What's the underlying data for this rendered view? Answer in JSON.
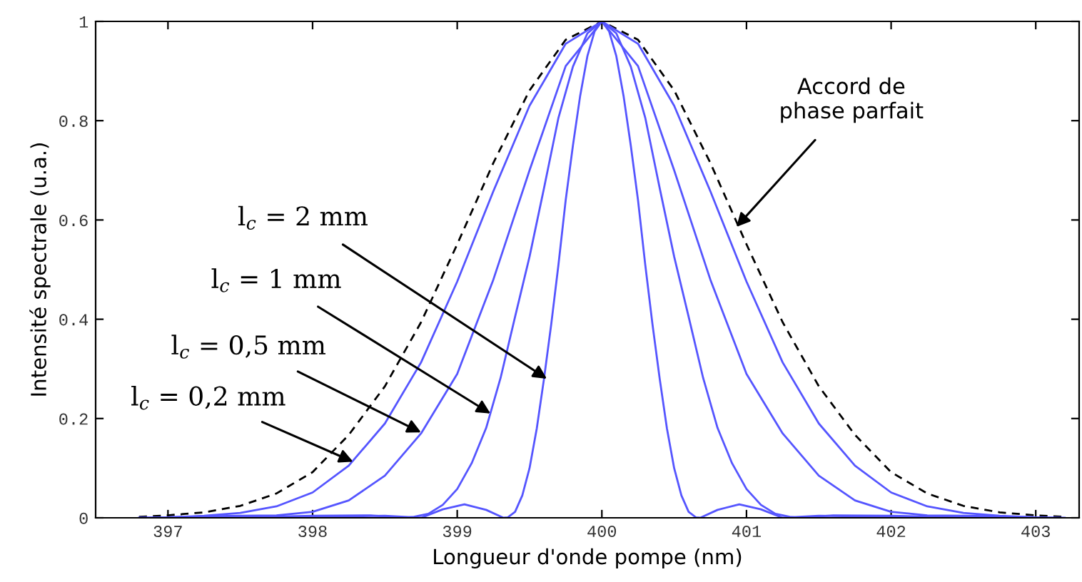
{
  "chart_data": {
    "type": "line",
    "xlabel": "Longueur d'onde pompe (nm)",
    "ylabel": "Intensité spectrale (u.a.)",
    "xlim": [
      396.5,
      403.3
    ],
    "ylim": [
      0,
      1
    ],
    "xticks": [
      397,
      398,
      399,
      400,
      401,
      402,
      403
    ],
    "yticks": [
      0,
      {
        "value": 0.2,
        "label": "0.2"
      },
      {
        "value": 0.4,
        "label": "0.4"
      },
      {
        "value": 0.6,
        "label": "0.6"
      },
      {
        "value": 0.8,
        "label": "0.8"
      },
      1
    ],
    "grid": false,
    "legend": false,
    "marker": "none",
    "series": [
      {
        "color": "#000000",
        "line_style": "dashed",
        "x": [
          396.8,
          397,
          397.25,
          397.5,
          397.75,
          398,
          398.25,
          398.5,
          398.75,
          399,
          399.25,
          399.5,
          399.75,
          400,
          400.25,
          400.5,
          400.75,
          401,
          401.25,
          401.5,
          401.75,
          402,
          402.25,
          402.5,
          402.75,
          403,
          403.2
        ],
        "values": [
          0.002,
          0.005,
          0.011,
          0.024,
          0.049,
          0.092,
          0.167,
          0.265,
          0.394,
          0.551,
          0.715,
          0.861,
          0.963,
          1,
          0.963,
          0.861,
          0.715,
          0.551,
          0.394,
          0.265,
          0.167,
          0.092,
          0.049,
          0.024,
          0.011,
          0.005,
          0.002
        ]
      },
      {
        "color": "#5555ff",
        "line_style": "solid",
        "x": [
          396.8,
          397,
          397.25,
          397.5,
          397.75,
          398,
          398.25,
          398.5,
          398.75,
          399,
          399.25,
          399.5,
          399.75,
          400,
          400.25,
          400.5,
          400.75,
          401,
          401.25,
          401.5,
          401.75,
          402,
          402.25,
          402.5,
          402.75,
          403,
          403.2
        ],
        "values": [
          0,
          0.001,
          0.004,
          0.01,
          0.023,
          0.051,
          0.105,
          0.19,
          0.313,
          0.476,
          0.658,
          0.83,
          0.955,
          1,
          0.955,
          0.83,
          0.658,
          0.476,
          0.313,
          0.19,
          0.105,
          0.051,
          0.023,
          0.01,
          0.004,
          0.001,
          0
        ]
      },
      {
        "color": "#5555ff",
        "line_style": "solid",
        "x": [
          396.8,
          397,
          397.25,
          397.5,
          397.75,
          398,
          398.25,
          398.5,
          398.75,
          399,
          399.25,
          399.5,
          399.75,
          400,
          400.25,
          400.5,
          400.75,
          401,
          401.25,
          401.5,
          401.75,
          402,
          402.25,
          402.5,
          402.75,
          403,
          403.2
        ],
        "values": [
          0,
          0.001,
          0.003,
          0.004,
          0.005,
          0.012,
          0.035,
          0.085,
          0.17,
          0.29,
          0.48,
          0.7,
          0.91,
          1,
          0.91,
          0.7,
          0.48,
          0.29,
          0.17,
          0.085,
          0.035,
          0.012,
          0.005,
          0.004,
          0.003,
          0.001,
          0
        ]
      },
      {
        "color": "#5555ff",
        "line_style": "solid",
        "x": [
          397,
          397.5,
          398,
          398.4,
          398.64,
          398.7,
          398.8,
          398.9,
          399,
          399.1,
          399.2,
          399.3,
          399.4,
          399.5,
          399.6,
          399.7,
          399.8,
          399.9,
          400,
          400.1,
          400.2,
          400.3,
          400.4,
          400.5,
          400.6,
          400.7,
          400.8,
          400.9,
          401,
          401.1,
          401.2,
          401.3,
          401.36,
          401.6,
          402,
          402.5,
          403
        ],
        "values": [
          0,
          0.001,
          0.004,
          0.005,
          0,
          0.002,
          0.008,
          0.026,
          0.058,
          0.11,
          0.181,
          0.282,
          0.405,
          0.526,
          0.664,
          0.806,
          0.909,
          0.976,
          1,
          0.976,
          0.909,
          0.806,
          0.664,
          0.526,
          0.405,
          0.282,
          0.181,
          0.11,
          0.058,
          0.026,
          0.008,
          0.002,
          0,
          0.005,
          0.004,
          0.001,
          0
        ]
      },
      {
        "color": "#5555ff",
        "line_style": "solid",
        "x": [
          397,
          398,
          398.5,
          398.75,
          398.9,
          399.05,
          399.2,
          399.32,
          399.35,
          399.4,
          399.45,
          399.5,
          399.55,
          399.6,
          399.65,
          399.7,
          399.75,
          399.8,
          399.85,
          399.9,
          399.95,
          400,
          400.05,
          400.1,
          400.15,
          400.2,
          400.25,
          400.3,
          400.35,
          400.4,
          400.45,
          400.5,
          400.55,
          400.6,
          400.65,
          400.68,
          400.8,
          400.95,
          401.1,
          401.25,
          401.5,
          402,
          403
        ],
        "values": [
          0,
          0.002,
          0.004,
          0,
          0.017,
          0.027,
          0.016,
          0,
          0.001,
          0.012,
          0.045,
          0.1,
          0.18,
          0.28,
          0.39,
          0.51,
          0.64,
          0.75,
          0.85,
          0.93,
          0.98,
          1,
          0.98,
          0.93,
          0.85,
          0.75,
          0.64,
          0.51,
          0.39,
          0.28,
          0.18,
          0.1,
          0.045,
          0.012,
          0.001,
          0,
          0.016,
          0.027,
          0.017,
          0,
          0.004,
          0.002,
          0
        ]
      }
    ],
    "annotations": [
      {
        "text": "l$_{c}$ = 0,2 mm",
        "x": 398.28,
        "y": 0.113
      },
      {
        "text": "l$_{c}$ = 0,5 mm",
        "x": 398.75,
        "y": 0.172
      },
      {
        "text": "l$_{c}$ = 1 mm",
        "x": 399.23,
        "y": 0.21
      },
      {
        "text": "l$_{c}$ = 2 mm",
        "x": 399.62,
        "y": 0.28
      },
      {
        "text": "Accord de\nphase parfait",
        "x": 400.93,
        "y": 0.586
      }
    ]
  }
}
